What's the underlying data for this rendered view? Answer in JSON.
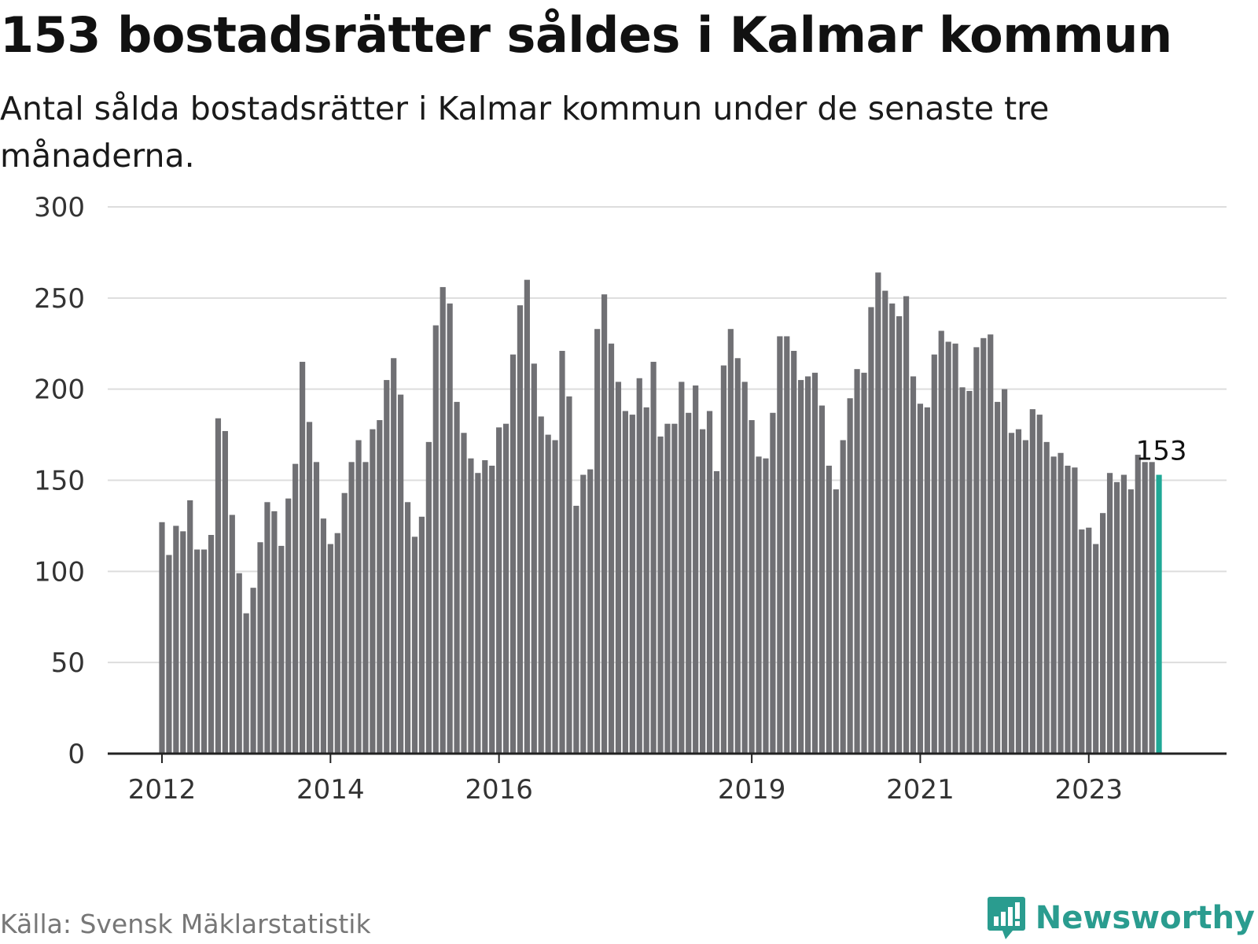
{
  "title": "153 bostadsrätter såldes i Kalmar kommun",
  "subtitle": "Antal sålda bostadsrätter i Kalmar kommun under de senaste tre månaderna.",
  "source": "Källa: Svensk Mäklarstatistik",
  "brand": "Newsworthy",
  "colors": {
    "bar": "#707074",
    "highlight": "#1fa896",
    "grid": "#dddddd",
    "brand": "#2a9c8f"
  },
  "chart_data": {
    "type": "bar",
    "title": "153 bostadsrätter såldes i Kalmar kommun",
    "ylim": [
      0,
      300
    ],
    "yticks": [
      "0",
      "50",
      "100",
      "150",
      "200",
      "250",
      "300"
    ],
    "xticks": [
      {
        "label": "2012",
        "index": 0
      },
      {
        "label": "2014",
        "index": 24
      },
      {
        "label": "2016",
        "index": 48
      },
      {
        "label": "2019",
        "index": 84
      },
      {
        "label": "2021",
        "index": 108
      },
      {
        "label": "2023",
        "index": 132
      }
    ],
    "highlight_index": 142,
    "annotation": "153",
    "values": [
      127,
      109,
      125,
      122,
      139,
      112,
      112,
      120,
      184,
      177,
      131,
      99,
      77,
      91,
      116,
      138,
      133,
      114,
      140,
      159,
      215,
      182,
      160,
      129,
      115,
      121,
      143,
      160,
      172,
      160,
      178,
      183,
      205,
      217,
      197,
      138,
      119,
      130,
      171,
      235,
      256,
      247,
      193,
      176,
      162,
      154,
      161,
      158,
      179,
      181,
      219,
      246,
      260,
      214,
      185,
      175,
      172,
      221,
      196,
      136,
      153,
      156,
      233,
      252,
      225,
      204,
      188,
      186,
      206,
      190,
      215,
      174,
      181,
      181,
      204,
      187,
      202,
      178,
      188,
      155,
      213,
      233,
      217,
      204,
      183,
      163,
      162,
      187,
      229,
      229,
      221,
      205,
      207,
      209,
      191,
      158,
      145,
      172,
      195,
      211,
      209,
      245,
      264,
      254,
      247,
      240,
      251,
      207,
      192,
      190,
      219,
      232,
      226,
      225,
      201,
      199,
      223,
      228,
      230,
      193,
      200,
      176,
      178,
      172,
      189,
      186,
      171,
      163,
      165,
      158,
      157,
      123,
      124,
      115,
      132,
      154,
      149,
      153,
      145,
      164,
      160,
      160,
      153
    ]
  }
}
